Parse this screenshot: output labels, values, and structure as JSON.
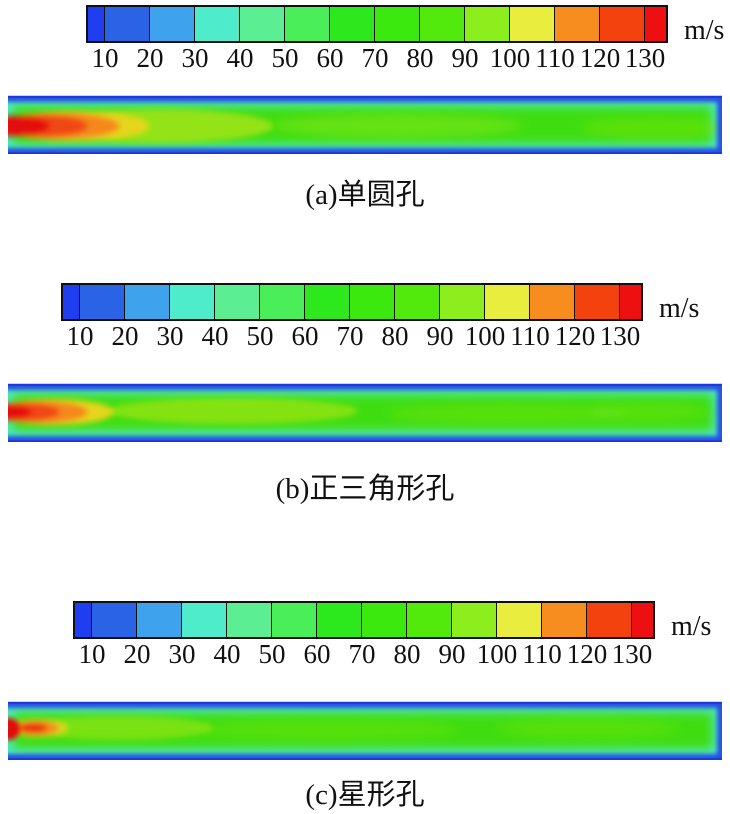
{
  "colorbar": {
    "unit": "m/s",
    "ticks": [
      10,
      20,
      30,
      40,
      50,
      60,
      70,
      80,
      90,
      100,
      110,
      120,
      130
    ],
    "segment_colors": [
      "#1e3ef0",
      "#2b63e6",
      "#3fa2ec",
      "#4feccb",
      "#5cee92",
      "#49ee58",
      "#2ee81e",
      "#3ce90e",
      "#52e90c",
      "#8dee1e",
      "#e9ee3e",
      "#f68d1e",
      "#f4420e",
      "#ee1010"
    ],
    "border_color": "#101010",
    "has_below_min_bin": true,
    "has_above_max_bin": true
  },
  "panels": [
    {
      "id": "a",
      "caption": "(a)单圆孔"
    },
    {
      "id": "b",
      "caption": "(b)正三角形孔"
    },
    {
      "id": "c",
      "caption": "(c)星形孔"
    }
  ],
  "chart_data": [
    {
      "type": "heatmap",
      "title": "(a)单圆孔",
      "field": "velocity magnitude contour in a long horizontal channel, jet inlet at left",
      "legend": {
        "unit": "m/s",
        "ticks": [
          10,
          20,
          30,
          40,
          50,
          60,
          70,
          80,
          90,
          100,
          110,
          120,
          130
        ],
        "orientation": "horizontal",
        "position": "above plot"
      },
      "regions": [
        {
          "zone": "inlet jet core (left edge, x≈0-13% of length)",
          "approx_velocity": "120-130+ m/s",
          "color": "red"
        },
        {
          "zone": "jet decay ring (x≈13-18%)",
          "approx_velocity": "100-120 m/s",
          "color": "orange-yellow"
        },
        {
          "zone": "jet wake (x≈18-35%)",
          "approx_velocity": "85-100 m/s",
          "color": "yellow-green"
        },
        {
          "zone": "core flow (remaining length)",
          "approx_velocity": "70-85 m/s",
          "color": "green"
        },
        {
          "zone": "near-wall transition",
          "approx_velocity": "30-50 m/s",
          "color": "cyan"
        },
        {
          "zone": "wall boundary layers (top/bottom)",
          "approx_velocity": "10-25 m/s",
          "color": "blue"
        }
      ]
    },
    {
      "type": "heatmap",
      "title": "(b)正三角形孔",
      "field": "velocity magnitude contour in a long horizontal channel, jet inlet at left",
      "legend": {
        "unit": "m/s",
        "ticks": [
          10,
          20,
          30,
          40,
          50,
          60,
          70,
          80,
          90,
          100,
          110,
          120,
          130
        ],
        "orientation": "horizontal",
        "position": "above plot"
      },
      "regions": [
        {
          "zone": "inlet jet core (left edge, x≈0-9% of length)",
          "approx_velocity": "120-130+ m/s",
          "color": "red"
        },
        {
          "zone": "jet decay ring (x≈9-15%)",
          "approx_velocity": "100-120 m/s",
          "color": "orange-yellow"
        },
        {
          "zone": "jet wake (x≈15-45%)",
          "approx_velocity": "85-100 m/s",
          "color": "yellow-green"
        },
        {
          "zone": "core flow (remaining length)",
          "approx_velocity": "70-85 m/s",
          "color": "green"
        },
        {
          "zone": "wall boundary layers (top/bottom)",
          "approx_velocity": "10-30 m/s",
          "color": "blue/cyan"
        }
      ]
    },
    {
      "type": "heatmap",
      "title": "(c)星形孔",
      "field": "velocity magnitude contour in a long horizontal channel, jet inlet at left",
      "legend": {
        "unit": "m/s",
        "ticks": [
          10,
          20,
          30,
          40,
          50,
          60,
          70,
          80,
          90,
          100,
          110,
          120,
          130
        ],
        "orientation": "horizontal",
        "position": "above plot"
      },
      "regions": [
        {
          "zone": "inlet jet core (tiny spot at left edge, x≈0-3% of length)",
          "approx_velocity": "120-130+ m/s",
          "color": "red"
        },
        {
          "zone": "short decay patch (x≈3-7%)",
          "approx_velocity": "100-120 m/s",
          "color": "orange"
        },
        {
          "zone": "jet wake (x≈7-28%)",
          "approx_velocity": "85-100 m/s",
          "color": "yellow-green"
        },
        {
          "zone": "core flow (remaining length)",
          "approx_velocity": "70-85 m/s",
          "color": "green"
        },
        {
          "zone": "wall boundary layers (top/bottom)",
          "approx_velocity": "10-30 m/s",
          "color": "blue/cyan"
        }
      ]
    }
  ]
}
